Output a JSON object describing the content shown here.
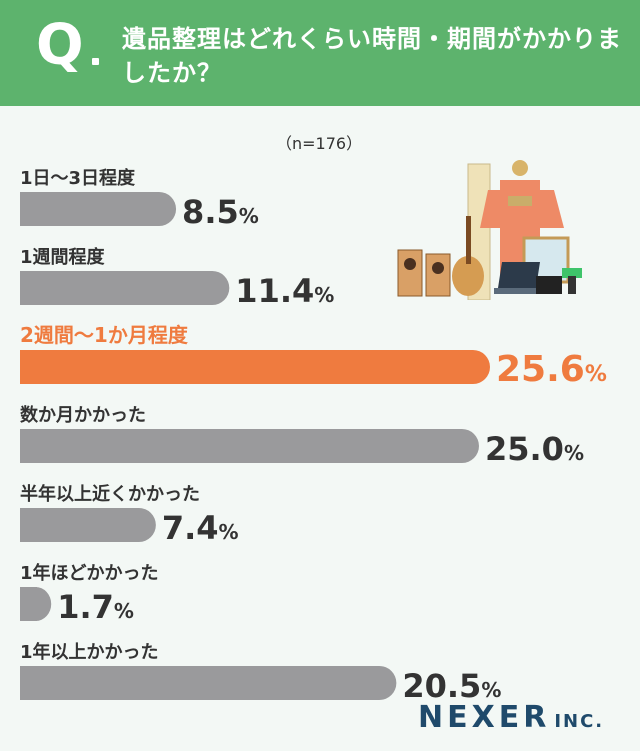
{
  "header": {
    "q_mark": "Q",
    "question": "遺品整理はどれくらい時間・期間がかかりましたか？"
  },
  "n_label": "（n=176）",
  "brand": {
    "name": "NEXER",
    "suffix": "INC."
  },
  "colors": {
    "header": "#5db36d",
    "bar": "#9a9a9c",
    "highlight": "#ef7b3f",
    "text": "#333333"
  },
  "chart_data": {
    "type": "bar",
    "orientation": "horizontal",
    "categories": [
      "1日〜3日程度",
      "1週間程度",
      "2週間〜1か月程度",
      "数か月かかった",
      "半年以上近くかかった",
      "1年ほどかかった",
      "1年以上かかった"
    ],
    "values": [
      8.5,
      11.4,
      25.6,
      25.0,
      7.4,
      1.7,
      20.5
    ],
    "value_labels": [
      "8.5",
      "11.4",
      "25.6",
      "25.0",
      "7.4",
      "1.7",
      "20.5"
    ],
    "unit": "%",
    "highlight_index": 2,
    "title": "遺品整理はどれくらい時間・期間がかかりましたか？"
  }
}
